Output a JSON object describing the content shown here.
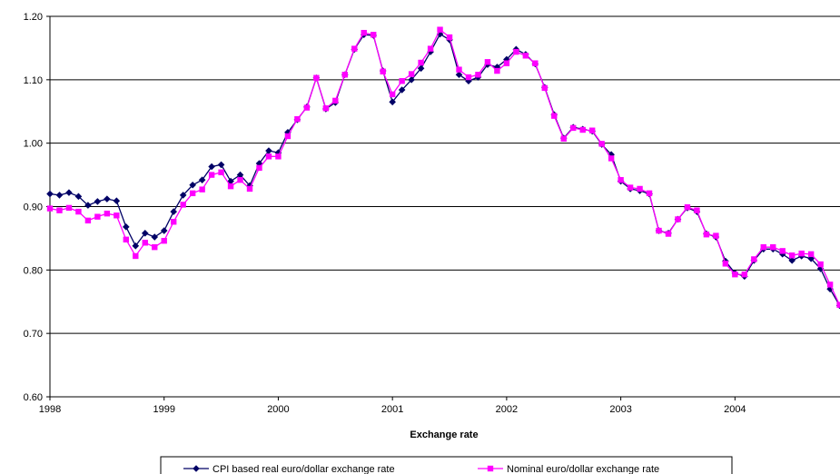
{
  "chart_data": {
    "type": "line",
    "title": "",
    "xlabel": "Exchange rate",
    "ylabel": "",
    "ylim": [
      0.6,
      1.2
    ],
    "xlim": [
      1998.0,
      2004.92
    ],
    "grid": "horizontal",
    "legend_position": "bottom",
    "y_ticks": [
      "0.60",
      "0.70",
      "0.80",
      "0.90",
      "1.00",
      "1.10",
      "1.20"
    ],
    "x_ticks": [
      "1998",
      "1999",
      "2000",
      "2001",
      "2002",
      "2003",
      "2004"
    ],
    "x_start": 1998.0,
    "x_step_months": 1,
    "series": [
      {
        "name": "CPI based real euro/dollar exchange rate",
        "color": "#000066",
        "marker": "diamond",
        "values": [
          0.92,
          0.918,
          0.922,
          0.916,
          0.902,
          0.908,
          0.912,
          0.909,
          0.868,
          0.838,
          0.858,
          0.852,
          0.862,
          0.892,
          0.918,
          0.934,
          0.942,
          0.963,
          0.966,
          0.94,
          0.95,
          0.933,
          0.968,
          0.988,
          0.985,
          1.017,
          1.037,
          1.057,
          1.103,
          1.054,
          1.064,
          1.108,
          1.148,
          1.171,
          1.17,
          1.114,
          1.065,
          1.084,
          1.1,
          1.118,
          1.144,
          1.172,
          1.163,
          1.108,
          1.098,
          1.104,
          1.124,
          1.12,
          1.132,
          1.148,
          1.14,
          1.125,
          1.088,
          1.045,
          1.008,
          1.025,
          1.022,
          1.019,
          0.998,
          0.982,
          0.94,
          0.928,
          0.925,
          0.92,
          0.862,
          0.858,
          0.88,
          0.898,
          0.892,
          0.857,
          0.852,
          0.814,
          0.795,
          0.79,
          0.815,
          0.833,
          0.833,
          0.825,
          0.815,
          0.822,
          0.818,
          0.802,
          0.77,
          0.744
        ]
      },
      {
        "name": "Nominal euro/dollar exchange rate",
        "color": "#FF00FF",
        "marker": "square",
        "values": [
          0.897,
          0.894,
          0.898,
          0.892,
          0.878,
          0.884,
          0.889,
          0.886,
          0.848,
          0.822,
          0.843,
          0.836,
          0.846,
          0.876,
          0.903,
          0.921,
          0.927,
          0.95,
          0.954,
          0.932,
          0.942,
          0.928,
          0.961,
          0.979,
          0.979,
          1.011,
          1.038,
          1.056,
          1.103,
          1.055,
          1.067,
          1.108,
          1.149,
          1.174,
          1.171,
          1.113,
          1.077,
          1.098,
          1.109,
          1.127,
          1.149,
          1.179,
          1.167,
          1.116,
          1.104,
          1.108,
          1.128,
          1.114,
          1.126,
          1.144,
          1.138,
          1.126,
          1.087,
          1.043,
          1.007,
          1.024,
          1.021,
          1.02,
          0.999,
          0.976,
          0.942,
          0.93,
          0.928,
          0.921,
          0.862,
          0.857,
          0.88,
          0.899,
          0.894,
          0.856,
          0.854,
          0.81,
          0.793,
          0.793,
          0.817,
          0.836,
          0.836,
          0.83,
          0.823,
          0.826,
          0.825,
          0.809,
          0.777,
          0.745
        ]
      }
    ]
  }
}
